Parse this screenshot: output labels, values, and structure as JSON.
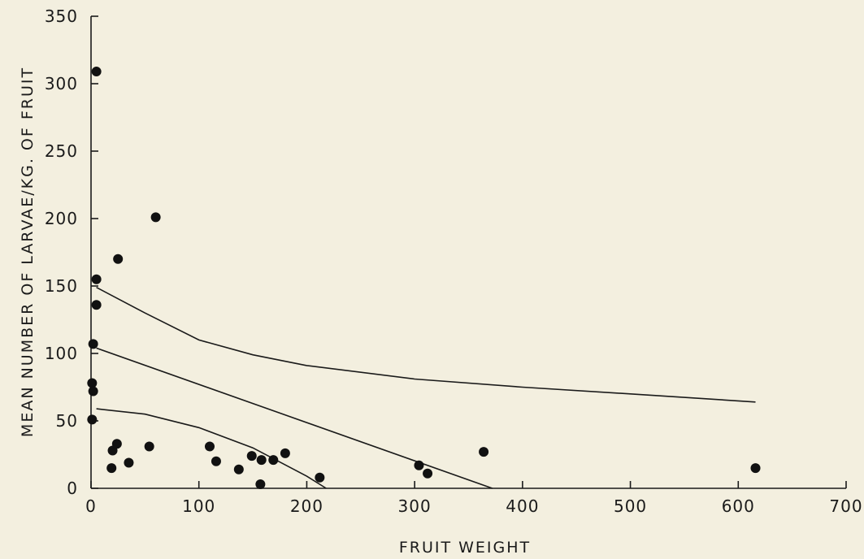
{
  "colors": {
    "background": "#f3efdf",
    "ink": "#1a1a1a",
    "point": "#111111"
  },
  "chart_data": {
    "type": "scatter",
    "title": "",
    "xlabel": "FRUIT WEIGHT",
    "ylabel": "MEAN NUMBER OF LARVAE/KG. OF FRUIT",
    "xlim": [
      0,
      700
    ],
    "ylim": [
      0,
      350
    ],
    "xticks": [
      "0",
      "100",
      "200",
      "300",
      "400",
      "500",
      "600",
      "700"
    ],
    "yticks": [
      "0",
      "50",
      "100",
      "150",
      "200",
      "250",
      "300",
      "350"
    ],
    "grid": false,
    "series": [
      {
        "type": "scatter",
        "points": [
          [
            5,
            309
          ],
          [
            5,
            155
          ],
          [
            5,
            136
          ],
          [
            2,
            107
          ],
          [
            1,
            78
          ],
          [
            2,
            72
          ],
          [
            1,
            51
          ],
          [
            25,
            170
          ],
          [
            60,
            201
          ],
          [
            20,
            28
          ],
          [
            24,
            33
          ],
          [
            19,
            15
          ],
          [
            35,
            19
          ],
          [
            54,
            31
          ],
          [
            110,
            31
          ],
          [
            116,
            20
          ],
          [
            137,
            14
          ],
          [
            149,
            24
          ],
          [
            157,
            3
          ],
          [
            158,
            21
          ],
          [
            169,
            21
          ],
          [
            180,
            26
          ],
          [
            212,
            8
          ],
          [
            304,
            17
          ],
          [
            312,
            11
          ],
          [
            364,
            27
          ],
          [
            616,
            15
          ]
        ]
      },
      {
        "type": "line",
        "points": [
          [
            5,
            149
          ],
          [
            50,
            130
          ],
          [
            100,
            110
          ],
          [
            150,
            99
          ],
          [
            200,
            91
          ],
          [
            300,
            81
          ],
          [
            400,
            75
          ],
          [
            500,
            70
          ],
          [
            616,
            64
          ]
        ]
      },
      {
        "type": "line",
        "points": [
          [
            5,
            104
          ],
          [
            372,
            0
          ]
        ]
      },
      {
        "type": "line",
        "points": [
          [
            5,
            59
          ],
          [
            50,
            55
          ],
          [
            100,
            45
          ],
          [
            150,
            30
          ],
          [
            200,
            9
          ],
          [
            218,
            0
          ]
        ]
      }
    ]
  }
}
